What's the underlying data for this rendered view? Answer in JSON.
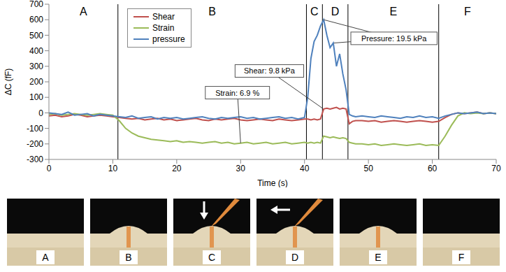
{
  "chart_data": {
    "type": "line",
    "x_label": "Time (s)",
    "y_label": "ΔC (fF)",
    "xlim": [
      0,
      70
    ],
    "xticks": [
      0,
      10,
      20,
      30,
      40,
      50,
      60,
      70
    ],
    "ylim": [
      -300,
      700
    ],
    "yticks": [
      -300,
      -200,
      -100,
      0,
      100,
      200,
      300,
      400,
      500,
      600,
      700
    ],
    "grid": false,
    "legend": "upper left",
    "x": [
      0,
      1,
      2,
      3,
      4,
      5,
      6,
      7,
      8,
      9,
      10,
      11,
      12,
      13,
      14,
      15,
      16,
      17,
      18,
      19,
      20,
      21,
      22,
      23,
      24,
      25,
      26,
      27,
      28,
      29,
      30,
      31,
      32,
      33,
      34,
      35,
      36,
      37,
      38,
      39,
      40,
      40.5,
      41,
      41.5,
      42,
      42.5,
      43,
      43.5,
      44,
      44.5,
      45,
      45.5,
      46,
      46.5,
      47,
      47.5,
      48,
      49,
      50,
      51,
      52,
      53,
      54,
      55,
      56,
      57,
      58,
      59,
      60,
      61,
      62,
      63,
      64,
      65,
      66,
      67,
      68,
      69,
      70
    ],
    "series": [
      {
        "name": "Shear",
        "color": "#c0504d",
        "values": [
          -20,
          -15,
          -25,
          -20,
          -10,
          -15,
          -25,
          -20,
          -15,
          -20,
          -25,
          -30,
          -35,
          -40,
          -35,
          -45,
          -40,
          -35,
          -45,
          -40,
          -50,
          -45,
          -40,
          -35,
          -45,
          -50,
          -40,
          -45,
          -40,
          -35,
          -45,
          -50,
          -45,
          -40,
          -45,
          -50,
          -40,
          -45,
          -50,
          -45,
          -40,
          -40,
          -45,
          -40,
          -45,
          -40,
          25,
          30,
          25,
          30,
          35,
          25,
          30,
          25,
          -70,
          -55,
          -50,
          -50,
          -55,
          -50,
          -60,
          -55,
          -50,
          -55,
          -60,
          -55,
          -50,
          -55,
          -60,
          -55,
          -30,
          -10,
          0,
          -5,
          0,
          5,
          -5,
          0,
          -5
        ]
      },
      {
        "name": "Strain",
        "color": "#9bbb59",
        "values": [
          -10,
          -5,
          -15,
          -10,
          -5,
          -10,
          -15,
          -10,
          -5,
          -10,
          -15,
          -50,
          -100,
          -130,
          -150,
          -160,
          -170,
          -175,
          -180,
          -185,
          -180,
          -190,
          -185,
          -190,
          -195,
          -190,
          -185,
          -195,
          -190,
          -200,
          -195,
          -190,
          -200,
          -195,
          -190,
          -200,
          -195,
          -190,
          -200,
          -195,
          -190,
          -195,
          -190,
          -195,
          -190,
          -195,
          -150,
          -155,
          -160,
          -155,
          -160,
          -165,
          -160,
          -165,
          -190,
          -195,
          -200,
          -200,
          -205,
          -200,
          -210,
          -205,
          -200,
          -205,
          -210,
          -205,
          -200,
          -210,
          -205,
          -210,
          -150,
          -80,
          -20,
          0,
          -5,
          0,
          -5,
          0,
          -5
        ]
      },
      {
        "name": "pressure",
        "color": "#4f81bd",
        "values": [
          0,
          -5,
          -10,
          5,
          -15,
          -10,
          -5,
          -20,
          -10,
          -15,
          -20,
          -25,
          -30,
          -20,
          -35,
          -30,
          -25,
          -40,
          -30,
          -35,
          -30,
          -40,
          -35,
          -30,
          -25,
          -35,
          -40,
          -30,
          -35,
          -30,
          -25,
          -35,
          -30,
          -40,
          -35,
          -30,
          -25,
          -35,
          -30,
          -40,
          -30,
          100,
          350,
          460,
          500,
          560,
          600,
          500,
          420,
          450,
          300,
          380,
          250,
          150,
          -10,
          -20,
          -25,
          -20,
          -25,
          -30,
          -20,
          -25,
          -30,
          -35,
          -25,
          -30,
          -20,
          -30,
          -25,
          -35,
          -20,
          -10,
          0,
          -5,
          0,
          5,
          -5,
          0,
          -5
        ]
      }
    ],
    "regions": [
      {
        "label": "A",
        "start": 0,
        "end": 10.8
      },
      {
        "label": "B",
        "start": 10.8,
        "end": 40.3
      },
      {
        "label": "C",
        "start": 40.3,
        "end": 42.8
      },
      {
        "label": "D",
        "start": 42.8,
        "end": 46.8
      },
      {
        "label": "E",
        "start": 46.8,
        "end": 61
      },
      {
        "label": "F",
        "start": 61,
        "end": 70
      }
    ],
    "annotations": [
      {
        "text": "Strain: 6.9 %",
        "x": 29.5,
        "y": 130,
        "points": [
          [
            30,
            -195
          ]
        ]
      },
      {
        "text": "Shear: 9.8 kPa",
        "x": 34.5,
        "y": 270,
        "points": [
          [
            42.8,
            30
          ]
        ]
      },
      {
        "text": "Pressure: 19.5 kPa",
        "x": 54,
        "y": 480,
        "points": [
          [
            43,
            600
          ],
          [
            44.6,
            450
          ]
        ]
      }
    ]
  },
  "photos": [
    "A",
    "B",
    "C",
    "D",
    "E",
    "F"
  ]
}
